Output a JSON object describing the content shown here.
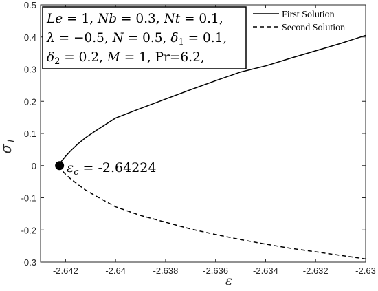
{
  "chart_data": {
    "type": "line",
    "xlabel": "ε",
    "ylabel": {
      "symbol": "σ",
      "subscript": "1"
    },
    "xlim": [
      -2.643,
      -2.63
    ],
    "ylim": [
      -0.3,
      0.5
    ],
    "xticks": [
      -2.642,
      -2.64,
      -2.638,
      -2.636,
      -2.634,
      -2.632,
      -2.63
    ],
    "xtick_labels": [
      "-2.642",
      "-2.64",
      "-2.638",
      "-2.636",
      "-2.634",
      "-2.632",
      "-2.63"
    ],
    "yticks": [
      -0.3,
      -0.2,
      -0.1,
      0,
      0.1,
      0.2,
      0.3,
      0.4,
      0.5
    ],
    "ytick_labels": [
      "-0.3",
      "-0.2",
      "-0.1",
      "0",
      "0.1",
      "0.2",
      "0.3",
      "0.4",
      "0.5"
    ],
    "grid": false,
    "legend_position": "top-right",
    "series": [
      {
        "name": "First Solution",
        "style": "solid",
        "color": "#000000",
        "x": [
          -2.64224,
          -2.64218,
          -2.642,
          -2.6418,
          -2.6415,
          -2.6412,
          -2.6408,
          -2.6404,
          -2.64,
          -2.639,
          -2.638,
          -2.637,
          -2.636,
          -2.635,
          -2.634,
          -2.633,
          -2.632,
          -2.631,
          -2.63
        ],
        "y": [
          0.0,
          0.012,
          0.029,
          0.046,
          0.068,
          0.087,
          0.108,
          0.128,
          0.148,
          0.178,
          0.207,
          0.236,
          0.264,
          0.291,
          0.31,
          0.334,
          0.357,
          0.38,
          0.405
        ]
      },
      {
        "name": "Second Solution",
        "style": "dashed",
        "color": "#000000",
        "x": [
          -2.64224,
          -2.64218,
          -2.642,
          -2.6418,
          -2.6415,
          -2.6412,
          -2.6408,
          -2.6404,
          -2.64,
          -2.639,
          -2.638,
          -2.637,
          -2.636,
          -2.635,
          -2.634,
          -2.633,
          -2.632,
          -2.631,
          -2.63
        ],
        "y": [
          0.0,
          -0.012,
          -0.027,
          -0.041,
          -0.059,
          -0.076,
          -0.094,
          -0.111,
          -0.128,
          -0.155,
          -0.176,
          -0.197,
          -0.214,
          -0.23,
          -0.244,
          -0.257,
          -0.268,
          -0.279,
          -0.29
        ]
      }
    ],
    "critical_point": {
      "x": -2.64224,
      "y": 0,
      "label_lhs": "ε",
      "label_sub": "c",
      "label_rhs": " = -2.64224"
    },
    "annotation_lines": [
      [
        {
          "t": "Le",
          "i": true
        },
        {
          "t": " = 1, "
        },
        {
          "t": "Nb",
          "i": true
        },
        {
          "t": " = 0.3, "
        },
        {
          "t": "Nt",
          "i": true
        },
        {
          "t": " = 0.1,"
        }
      ],
      [
        {
          "t": "λ",
          "i": true
        },
        {
          "t": " = −0.5, "
        },
        {
          "t": "N",
          "i": true
        },
        {
          "t": " = 0.5, "
        },
        {
          "t": "δ",
          "i": true
        },
        {
          "t": "1",
          "sub": true
        },
        {
          "t": " = 0.1,"
        }
      ],
      [
        {
          "t": "δ",
          "i": true
        },
        {
          "t": "2",
          "sub": true
        },
        {
          "t": " = 0.2, "
        },
        {
          "t": "M",
          "i": true
        },
        {
          "t": " = 1, Pr=6.2,"
        }
      ]
    ]
  }
}
